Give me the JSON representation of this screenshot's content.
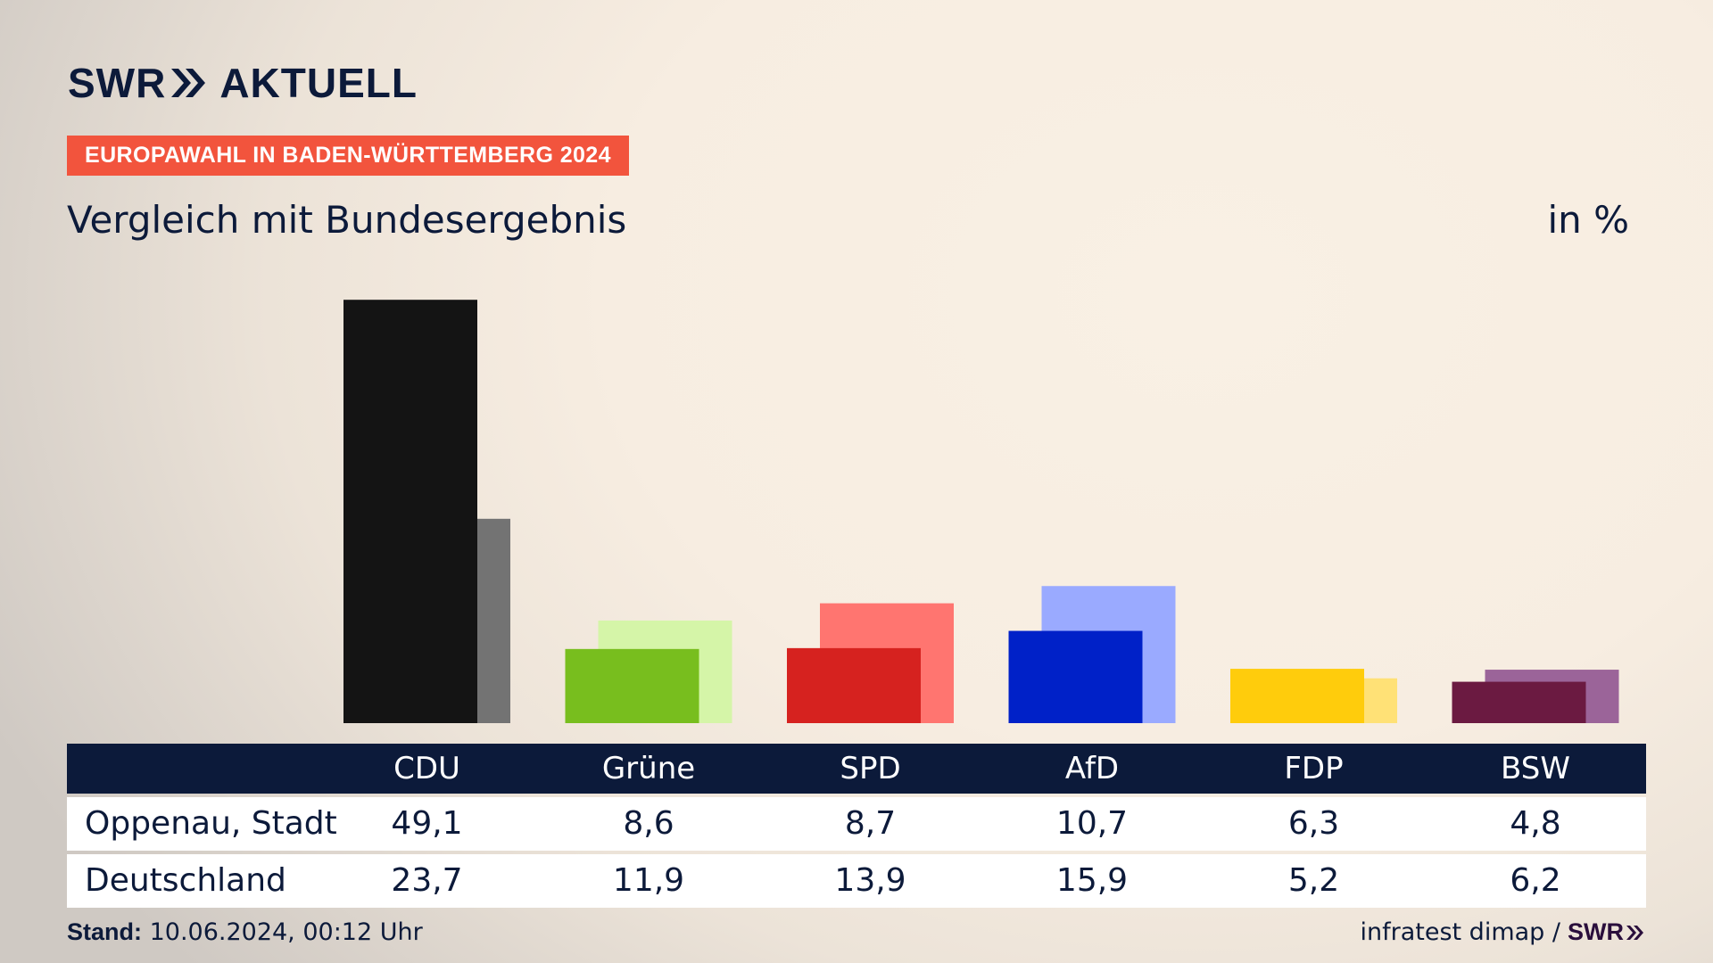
{
  "brand": {
    "logo_text_1": "SWR",
    "logo_text_2": "AKTUELL",
    "footer_logo": "SWR"
  },
  "kicker": "EUROPAWAHL IN BADEN-WÜRTTEMBERG 2024",
  "title": "Vergleich mit Bundesergebnis",
  "unit": "in %",
  "footer": {
    "stand_label": "Stand:",
    "stand_value": "10.06.2024, 00:12 Uhr",
    "source": "infratest dimap /"
  },
  "table": {
    "row_labels": [
      "Oppenau, Stadt",
      "Deutschland"
    ]
  },
  "chart_data": {
    "type": "bar",
    "categories": [
      "CDU",
      "Grüne",
      "SPD",
      "AfD",
      "FDP",
      "BSW"
    ],
    "series": [
      {
        "name": "Oppenau, Stadt",
        "values": [
          49.1,
          8.6,
          8.7,
          10.7,
          6.3,
          4.8
        ],
        "labels": [
          "49,1",
          "8,6",
          "8,7",
          "10,7",
          "6,3",
          "4,8"
        ]
      },
      {
        "name": "Deutschland",
        "values": [
          23.7,
          11.9,
          13.9,
          15.9,
          5.2,
          6.2
        ],
        "labels": [
          "23,7",
          "11,9",
          "13,9",
          "15,9",
          "5,2",
          "6,2"
        ]
      }
    ],
    "colors_primary": [
      "#141414",
      "#78be1e",
      "#d6221f",
      "#0021c8",
      "#ffcc0c",
      "#6b1a41"
    ],
    "colors_secondary": [
      "#737373",
      "#d5f5a8",
      "#ff7570",
      "#9aaaff",
      "#ffe176",
      "#9b6499"
    ],
    "ylim": [
      0,
      50
    ]
  }
}
